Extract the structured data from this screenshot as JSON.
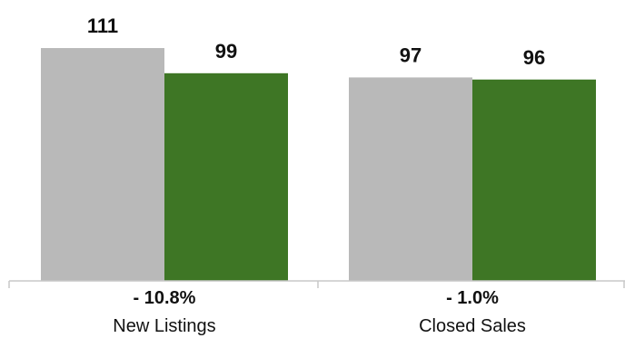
{
  "chart_data": {
    "type": "bar",
    "categories": [
      "New Listings",
      "Closed Sales"
    ],
    "change_labels": [
      "- 10.8%",
      "- 1.0%"
    ],
    "series": [
      {
        "color": "#b9b9b9",
        "values": [
          111,
          97
        ]
      },
      {
        "color": "#3e7625",
        "values": [
          99,
          96
        ]
      }
    ],
    "ylim": [
      0,
      115
    ],
    "grid": false,
    "legend": "none"
  }
}
